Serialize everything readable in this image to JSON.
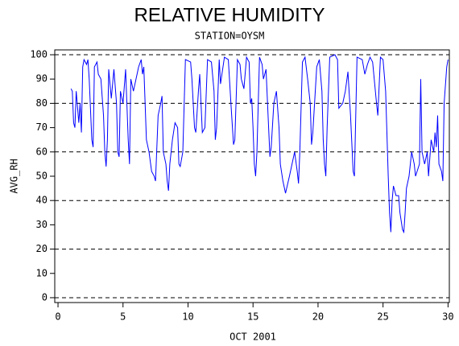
{
  "chart_data": {
    "type": "line",
    "title": "RELATIVE HUMIDITY",
    "subtitle": "STATION=OYSM",
    "y_label": "AVG_RH",
    "x_label": "OCT 2001",
    "xlim": [
      -0.25,
      30.1
    ],
    "ylim": [
      -2,
      102
    ],
    "xticks": [
      0,
      5,
      10,
      15,
      20,
      25,
      30
    ],
    "yticks": [
      0,
      10,
      20,
      30,
      40,
      50,
      60,
      70,
      80,
      90,
      100
    ],
    "grid_lines": [
      0,
      20,
      40,
      60,
      80,
      100
    ],
    "series": [
      {
        "color": "#0000ff",
        "x": [
          1.0,
          1.1,
          1.2,
          1.3,
          1.4,
          1.6,
          1.7,
          1.8,
          1.9,
          2.0,
          2.2,
          2.3,
          2.4,
          2.6,
          2.7,
          2.8,
          3.0,
          3.1,
          3.3,
          3.5,
          3.6,
          3.7,
          3.8,
          3.9,
          4.1,
          4.3,
          4.5,
          4.6,
          4.7,
          4.8,
          5.0,
          5.2,
          5.4,
          5.5,
          5.6,
          5.8,
          6.0,
          6.2,
          6.4,
          6.5,
          6.6,
          6.8,
          7.0,
          7.2,
          7.4,
          7.5,
          7.7,
          7.9,
          8.0,
          8.1,
          8.3,
          8.4,
          8.5,
          8.6,
          8.8,
          9.0,
          9.2,
          9.3,
          9.4,
          9.6,
          9.8,
          10.2,
          10.3,
          10.5,
          10.6,
          10.8,
          10.9,
          11.1,
          11.3,
          11.5,
          11.8,
          12.0,
          12.1,
          12.2,
          12.4,
          12.5,
          12.8,
          13.1,
          13.3,
          13.5,
          13.6,
          13.8,
          14.0,
          14.1,
          14.3,
          14.5,
          14.7,
          14.8,
          14.9,
          15.0,
          15.1,
          15.2,
          15.3,
          15.5,
          15.7,
          15.8,
          16.0,
          16.2,
          16.3,
          16.4,
          16.6,
          16.8,
          17.0,
          17.1,
          17.3,
          17.5,
          17.8,
          18.0,
          18.2,
          18.4,
          18.5,
          18.6,
          18.8,
          19.0,
          19.2,
          19.4,
          19.5,
          19.6,
          19.9,
          20.1,
          20.3,
          20.4,
          20.5,
          20.6,
          20.7,
          20.9,
          21.3,
          21.5,
          21.6,
          21.9,
          22.1,
          22.3,
          22.5,
          22.7,
          22.8,
          23.0,
          23.4,
          23.6,
          23.8,
          24.0,
          24.2,
          24.5,
          24.6,
          24.8,
          25.0,
          25.2,
          25.4,
          25.5,
          25.6,
          25.7,
          25.8,
          26.0,
          26.2,
          26.3,
          26.5,
          26.6,
          26.7,
          26.8,
          27.0,
          27.2,
          27.4,
          27.5,
          27.8,
          27.9,
          28.0,
          28.2,
          28.4,
          28.5,
          28.7,
          28.9,
          29.0,
          29.1,
          29.2,
          29.3,
          29.5,
          29.6,
          29.7,
          29.9,
          30.0
        ],
        "values": [
          86,
          85,
          72,
          70,
          85,
          72,
          80,
          68,
          95,
          98,
          96,
          98,
          90,
          65,
          62,
          95,
          97,
          92,
          90,
          75,
          60,
          54,
          65,
          94,
          82,
          94,
          80,
          60,
          58,
          85,
          80,
          94,
          65,
          55,
          90,
          85,
          90,
          95,
          98,
          92,
          95,
          65,
          60,
          52,
          50,
          48,
          75,
          80,
          83,
          60,
          55,
          48,
          44,
          55,
          65,
          72,
          70,
          55,
          54,
          60,
          98,
          97,
          90,
          70,
          68,
          85,
          92,
          68,
          70,
          98,
          97,
          85,
          65,
          70,
          98,
          88,
          99,
          98,
          80,
          63,
          65,
          98,
          96,
          90,
          86,
          99,
          97,
          80,
          82,
          70,
          55,
          50,
          60,
          99,
          96,
          90,
          94,
          70,
          58,
          62,
          80,
          85,
          70,
          55,
          48,
          43,
          50,
          55,
          60,
          52,
          47,
          60,
          97,
          99,
          90,
          80,
          63,
          68,
          95,
          98,
          85,
          65,
          55,
          50,
          70,
          99,
          100,
          98,
          78,
          80,
          85,
          93,
          75,
          52,
          50,
          99,
          98,
          92,
          96,
          99,
          97,
          80,
          75,
          99,
          98,
          85,
          50,
          35,
          27,
          40,
          46,
          42,
          42,
          35,
          28,
          27,
          35,
          45,
          50,
          60,
          55,
          50,
          55,
          90,
          60,
          55,
          60,
          50,
          65,
          60,
          68,
          62,
          75,
          55,
          52,
          48,
          80,
          95,
          98
        ]
      }
    ]
  }
}
